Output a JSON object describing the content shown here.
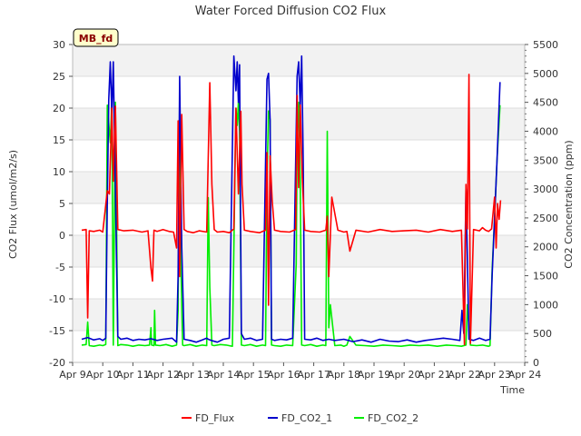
{
  "chart_data": {
    "type": "line",
    "title": "Water Forced Diffusion CO2 Flux",
    "badge": "MB_fd",
    "xlabel": "Time",
    "ylabel_left": "CO2 Flux (umol/m2/s)",
    "ylabel_right": "CO2 Concentration (ppm)",
    "xlim": [
      0,
      15
    ],
    "ylim_left": [
      -20,
      30
    ],
    "ylim_right": [
      0,
      5500
    ],
    "x_ticks": [
      0,
      1,
      2,
      3,
      4,
      5,
      6,
      7,
      8,
      9,
      10,
      11,
      12,
      13,
      14,
      15
    ],
    "x_tick_labels": [
      "Apr 9",
      "Apr 10",
      "Apr 11",
      "Apr 12",
      "Apr 13",
      "Apr 14",
      "Apr 15",
      "Apr 16",
      "Apr 17",
      "Apr 18",
      "Apr 19",
      "Apr 20",
      "Apr 21",
      "Apr 22",
      "Apr 23",
      "Apr 24"
    ],
    "y_left_ticks": [
      -20,
      -15,
      -10,
      -5,
      0,
      5,
      10,
      15,
      20,
      25,
      30
    ],
    "y_right_ticks": [
      0,
      500,
      1000,
      1500,
      2000,
      2500,
      3000,
      3500,
      4000,
      4500,
      5000,
      5500
    ],
    "grid": true,
    "legend_position": "bottom",
    "series": [
      {
        "name": "FD_Flux",
        "axis": "left",
        "color": "#ff0000",
        "x": [
          0.3,
          0.45,
          0.5,
          0.55,
          0.7,
          0.9,
          1.0,
          1.15,
          1.22,
          1.3,
          1.35,
          1.42,
          1.5,
          1.7,
          2.0,
          2.3,
          2.5,
          2.6,
          2.65,
          2.7,
          2.8,
          3.0,
          3.2,
          3.35,
          3.45,
          3.5,
          3.55,
          3.62,
          3.7,
          3.8,
          4.0,
          4.2,
          4.45,
          4.55,
          4.62,
          4.7,
          4.8,
          5.0,
          5.2,
          5.35,
          5.42,
          5.5,
          5.58,
          5.62,
          5.7,
          5.9,
          6.2,
          6.4,
          6.45,
          6.5,
          6.55,
          6.62,
          6.7,
          6.9,
          7.2,
          7.4,
          7.45,
          7.5,
          7.55,
          7.62,
          7.7,
          7.9,
          8.2,
          8.4,
          8.45,
          8.5,
          8.6,
          8.8,
          9.0,
          9.1,
          9.2,
          9.4,
          9.8,
          10.2,
          10.6,
          11.0,
          11.4,
          11.8,
          12.2,
          12.6,
          12.9,
          13.0,
          13.05,
          13.1,
          13.15,
          13.2,
          13.3,
          13.5,
          13.6,
          13.7,
          13.8,
          13.9,
          14.0,
          14.05,
          14.1,
          14.15,
          14.2
        ],
        "y": [
          0.8,
          0.9,
          -13.0,
          0.7,
          0.6,
          0.8,
          0.5,
          7.0,
          6.5,
          20.0,
          8.5,
          20.3,
          0.9,
          0.7,
          0.8,
          0.5,
          0.7,
          -5.2,
          -7.2,
          0.8,
          0.6,
          0.9,
          0.6,
          0.5,
          -2.0,
          18.0,
          -6.5,
          19.0,
          0.9,
          0.6,
          0.4,
          0.7,
          0.5,
          24.0,
          8.0,
          0.9,
          0.5,
          0.6,
          0.4,
          1.0,
          20.0,
          6.5,
          19.5,
          8.0,
          0.8,
          0.6,
          0.4,
          0.8,
          13.0,
          -11.0,
          12.5,
          5.5,
          0.8,
          0.6,
          0.5,
          0.9,
          22.0,
          7.5,
          20.5,
          9.0,
          0.8,
          0.6,
          0.5,
          0.8,
          3.0,
          -6.5,
          6.0,
          0.8,
          0.5,
          0.6,
          -2.5,
          0.8,
          0.5,
          0.9,
          0.6,
          0.7,
          0.8,
          0.5,
          0.9,
          0.6,
          0.8,
          -17.2,
          8.0,
          1.0,
          25.3,
          -17.0,
          0.9,
          0.7,
          1.2,
          0.8,
          0.6,
          1.0,
          6.0,
          -2.0,
          5.0,
          2.5,
          5.5
        ]
      },
      {
        "name": "FD_CO2_1",
        "axis": "right",
        "color": "#0000cc",
        "x": [
          0.3,
          0.5,
          0.7,
          0.9,
          1.0,
          1.1,
          1.15,
          1.2,
          1.25,
          1.3,
          1.35,
          1.42,
          1.5,
          1.6,
          1.8,
          2.0,
          2.2,
          2.4,
          2.6,
          2.8,
          3.0,
          3.3,
          3.45,
          3.5,
          3.55,
          3.62,
          3.7,
          3.9,
          4.1,
          4.3,
          4.45,
          4.5,
          4.6,
          4.8,
          5.0,
          5.2,
          5.35,
          5.42,
          5.46,
          5.5,
          5.54,
          5.6,
          5.7,
          5.9,
          6.1,
          6.3,
          6.45,
          6.5,
          6.55,
          6.6,
          6.7,
          6.9,
          7.1,
          7.3,
          7.45,
          7.5,
          7.55,
          7.6,
          7.65,
          7.7,
          7.9,
          8.1,
          8.3,
          8.5,
          8.7,
          9.0,
          9.3,
          9.6,
          9.9,
          10.2,
          10.5,
          10.8,
          11.1,
          11.4,
          11.7,
          12.0,
          12.3,
          12.6,
          12.85,
          12.92,
          12.98,
          13.05,
          13.15,
          13.3,
          13.5,
          13.7,
          13.85,
          13.92,
          14.0,
          14.08,
          14.18
        ],
        "y": [
          400,
          430,
          390,
          410,
          380,
          420,
          2800,
          4550,
          5200,
          4300,
          5200,
          3000,
          450,
          400,
          420,
          380,
          400,
          390,
          410,
          380,
          400,
          420,
          350,
          1500,
          4950,
          2000,
          400,
          380,
          350,
          390,
          420,
          400,
          380,
          350,
          400,
          420,
          5300,
          4700,
          5200,
          4500,
          5150,
          500,
          400,
          420,
          380,
          400,
          4900,
          5000,
          4200,
          400,
          380,
          400,
          390,
          420,
          4950,
          5200,
          4400,
          5300,
          3500,
          400,
          390,
          420,
          380,
          400,
          380,
          400,
          360,
          390,
          350,
          400,
          370,
          360,
          390,
          350,
          380,
          400,
          420,
          400,
          380,
          900,
          500,
          3000,
          400,
          380,
          420,
          380,
          400,
          1500,
          2500,
          3500,
          4850
        ]
      },
      {
        "name": "FD_CO2_2",
        "axis": "right",
        "color": "#00ee00",
        "x": [
          0.3,
          0.45,
          0.5,
          0.55,
          0.7,
          0.9,
          1.0,
          1.1,
          1.15,
          1.25,
          1.3,
          1.35,
          1.42,
          1.5,
          1.6,
          1.8,
          2.0,
          2.2,
          2.4,
          2.55,
          2.6,
          2.62,
          2.7,
          2.72,
          2.75,
          2.9,
          3.1,
          3.3,
          3.45,
          3.5,
          3.55,
          3.6,
          3.65,
          3.7,
          3.9,
          4.1,
          4.3,
          4.45,
          4.5,
          4.55,
          4.62,
          4.7,
          4.9,
          5.1,
          5.3,
          5.42,
          5.46,
          5.5,
          5.54,
          5.6,
          5.7,
          5.9,
          6.1,
          6.3,
          6.4,
          6.45,
          6.5,
          6.55,
          6.6,
          6.7,
          6.9,
          7.1,
          7.3,
          7.42,
          7.45,
          7.5,
          7.55,
          7.6,
          7.7,
          7.9,
          8.1,
          8.3,
          8.4,
          8.45,
          8.5,
          8.55,
          8.7,
          8.9,
          9.0,
          9.1,
          9.2,
          9.4,
          9.7,
          10.0,
          10.3,
          10.6,
          10.9,
          11.2,
          11.5,
          11.8,
          12.1,
          12.4,
          12.7,
          12.9,
          13.05,
          13.1,
          13.2,
          13.4,
          13.6,
          13.8,
          13.85,
          13.92,
          14.0,
          14.08,
          14.18
        ],
        "y": [
          300,
          310,
          700,
          290,
          280,
          300,
          290,
          310,
          4450,
          3800,
          4500,
          300,
          4500,
          290,
          310,
          300,
          280,
          300,
          290,
          300,
          600,
          300,
          290,
          900,
          300,
          290,
          310,
          280,
          300,
          900,
          4600,
          1500,
          300,
          290,
          310,
          280,
          300,
          290,
          2850,
          1300,
          300,
          290,
          310,
          300,
          280,
          4400,
          4100,
          4500,
          4000,
          300,
          290,
          310,
          280,
          300,
          290,
          3100,
          4350,
          4200,
          300,
          290,
          280,
          300,
          290,
          1700,
          3800,
          4500,
          3200,
          300,
          290,
          310,
          280,
          300,
          290,
          4000,
          600,
          1000,
          290,
          300,
          280,
          300,
          450,
          300,
          290,
          280,
          300,
          290,
          280,
          300,
          290,
          300,
          280,
          300,
          290,
          280,
          300,
          1000,
          300,
          290,
          300,
          280,
          290,
          1600,
          2500,
          3500,
          4450
        ]
      }
    ]
  }
}
